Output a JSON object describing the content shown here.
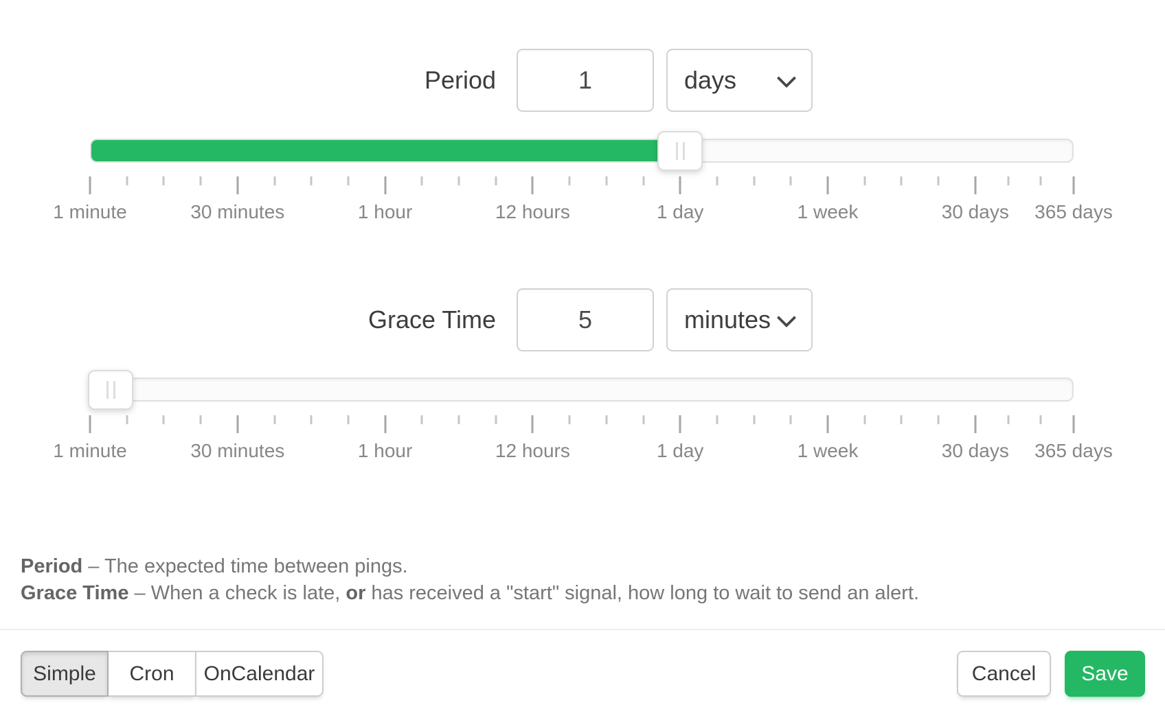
{
  "period": {
    "label": "Period",
    "value": "1",
    "unit": "days",
    "slider_percent": 60
  },
  "grace": {
    "label": "Grace Time",
    "value": "5",
    "unit": "minutes",
    "slider_percent": 2.1
  },
  "scale": {
    "major_ticks": [
      {
        "label": "1 minute",
        "percent": 0
      },
      {
        "label": "30 minutes",
        "percent": 15
      },
      {
        "label": "1 hour",
        "percent": 30
      },
      {
        "label": "12 hours",
        "percent": 45
      },
      {
        "label": "1 day",
        "percent": 60
      },
      {
        "label": "1 week",
        "percent": 75
      },
      {
        "label": "30 days",
        "percent": 90
      },
      {
        "label": "365 days",
        "percent": 100
      }
    ],
    "minors_per_segment": 3,
    "minors_last_segment": 2
  },
  "help": {
    "period_term": "Period",
    "period_desc": " – The expected time between pings.",
    "grace_term": "Grace Time",
    "grace_desc_1": " – When a check is late, ",
    "grace_or": "or",
    "grace_desc_2": " has received a \"start\" signal, how long to wait to send an alert."
  },
  "footer": {
    "modes": [
      {
        "label": "Simple",
        "active": true
      },
      {
        "label": "Cron",
        "active": false
      },
      {
        "label": "OnCalendar",
        "active": false
      }
    ],
    "cancel_label": "Cancel",
    "save_label": "Save"
  },
  "colors": {
    "accent_green": "#25b864",
    "track_bg": "#fbfbfb",
    "text_dark": "#3d3d3d",
    "text_muted": "#878787"
  }
}
